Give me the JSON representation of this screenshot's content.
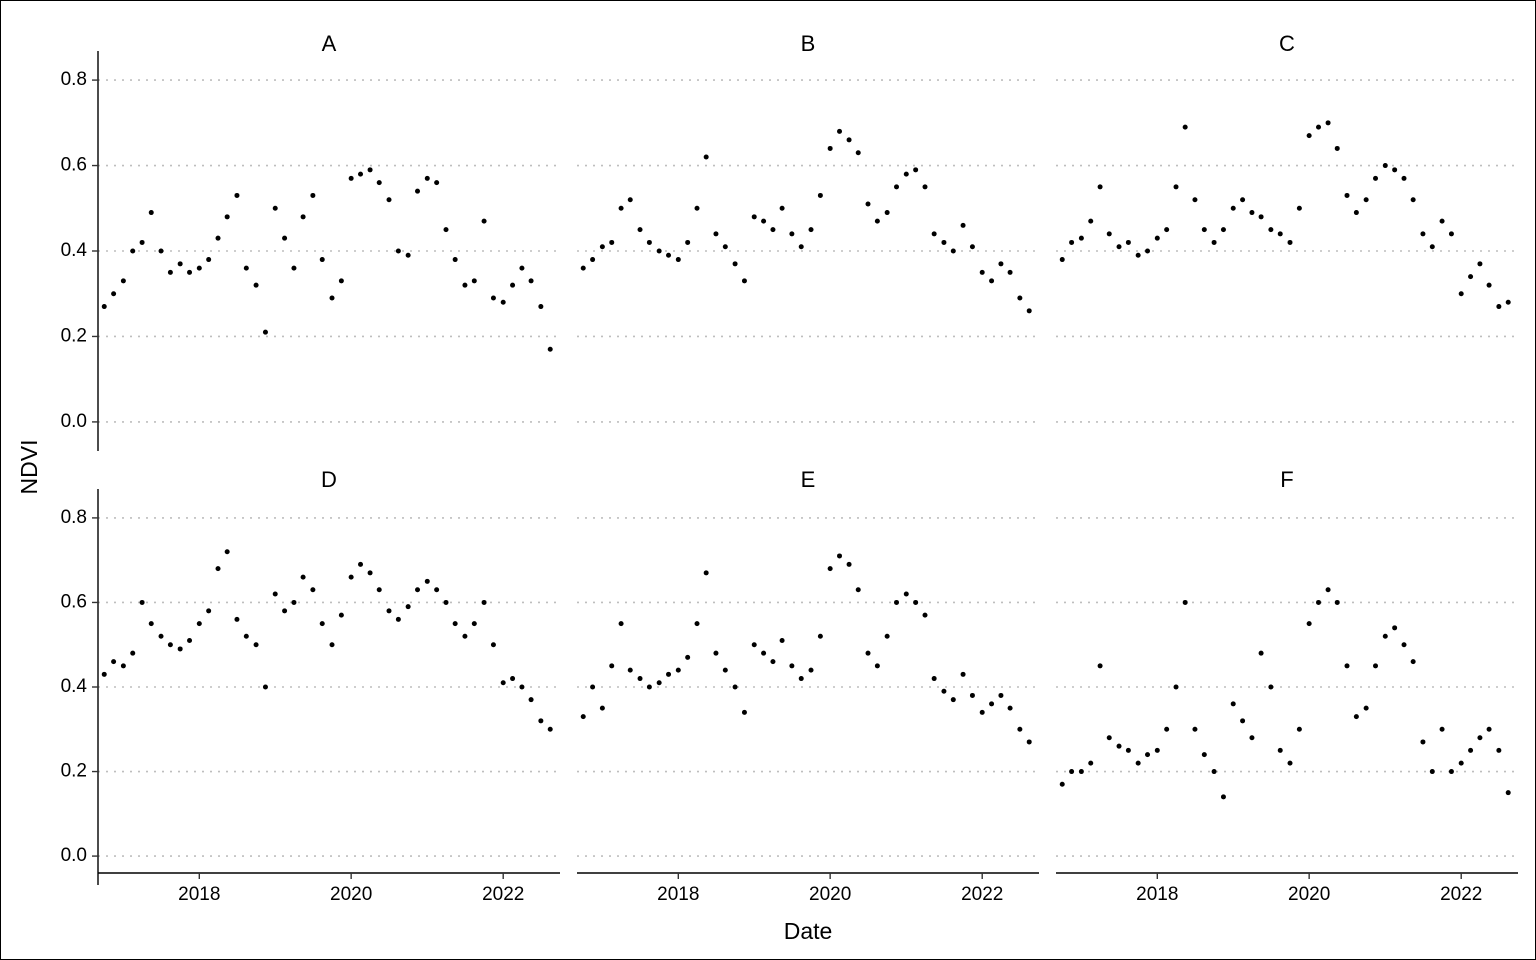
{
  "chart_data": {
    "type": "scatter",
    "layout": "facet-grid-2x3",
    "xlabel": "Date",
    "ylabel": "NDVI",
    "xlim": [
      "2016-09-01",
      "2022-10-01"
    ],
    "x_ticks": [
      "2018",
      "2020",
      "2022"
    ],
    "ylim": [
      -0.04,
      0.84
    ],
    "y_ticks": [
      "0.0",
      "0.2",
      "0.4",
      "0.6",
      "0.8"
    ],
    "grid": "horizontal dotted",
    "point_color": "#000000",
    "grid_color": "#bebebe",
    "panels": [
      {
        "label": "A",
        "x": [
          "2016-10-01",
          "2016-11-15",
          "2017-01-01",
          "2017-02-15",
          "2017-04-01",
          "2017-05-15",
          "2017-07-01",
          "2017-08-15",
          "2017-10-01",
          "2017-11-15",
          "2018-01-01",
          "2018-02-15",
          "2018-04-01",
          "2018-05-15",
          "2018-07-01",
          "2018-08-15",
          "2018-10-01",
          "2018-11-15",
          "2019-01-01",
          "2019-02-15",
          "2019-04-01",
          "2019-05-15",
          "2019-07-01",
          "2019-08-15",
          "2019-10-01",
          "2019-11-15",
          "2020-01-01",
          "2020-02-15",
          "2020-04-01",
          "2020-05-15",
          "2020-07-01",
          "2020-08-15",
          "2020-10-01",
          "2020-11-15",
          "2021-01-01",
          "2021-02-15",
          "2021-04-01",
          "2021-05-15",
          "2021-07-01",
          "2021-08-15",
          "2021-10-01",
          "2021-11-15",
          "2022-01-01",
          "2022-02-15",
          "2022-04-01",
          "2022-05-15",
          "2022-07-01",
          "2022-08-15"
        ],
        "values": [
          0.27,
          0.3,
          0.33,
          0.4,
          0.42,
          0.49,
          0.4,
          0.35,
          0.37,
          0.35,
          0.36,
          0.38,
          0.43,
          0.48,
          0.53,
          0.36,
          0.32,
          0.21,
          0.5,
          0.43,
          0.36,
          0.48,
          0.53,
          0.38,
          0.29,
          0.33,
          0.57,
          0.58,
          0.59,
          0.56,
          0.52,
          0.4,
          0.39,
          0.54,
          0.57,
          0.56,
          0.45,
          0.38,
          0.32,
          0.33,
          0.47,
          0.29,
          0.28,
          0.32,
          0.36,
          0.33,
          0.27,
          0.17
        ]
      },
      {
        "label": "B",
        "x": [
          "2016-10-01",
          "2016-11-15",
          "2017-01-01",
          "2017-02-15",
          "2017-04-01",
          "2017-05-15",
          "2017-07-01",
          "2017-08-15",
          "2017-10-01",
          "2017-11-15",
          "2018-01-01",
          "2018-02-15",
          "2018-04-01",
          "2018-05-15",
          "2018-07-01",
          "2018-08-15",
          "2018-10-01",
          "2018-11-15",
          "2019-01-01",
          "2019-02-15",
          "2019-04-01",
          "2019-05-15",
          "2019-07-01",
          "2019-08-15",
          "2019-10-01",
          "2019-11-15",
          "2020-01-01",
          "2020-02-15",
          "2020-04-01",
          "2020-05-15",
          "2020-07-01",
          "2020-08-15",
          "2020-10-01",
          "2020-11-15",
          "2021-01-01",
          "2021-02-15",
          "2021-04-01",
          "2021-05-15",
          "2021-07-01",
          "2021-08-15",
          "2021-10-01",
          "2021-11-15",
          "2022-01-01",
          "2022-02-15",
          "2022-04-01",
          "2022-05-15",
          "2022-07-01",
          "2022-08-15"
        ],
        "values": [
          0.36,
          0.38,
          0.41,
          0.42,
          0.5,
          0.52,
          0.45,
          0.42,
          0.4,
          0.39,
          0.38,
          0.42,
          0.5,
          0.62,
          0.44,
          0.41,
          0.37,
          0.33,
          0.48,
          0.47,
          0.45,
          0.5,
          0.44,
          0.41,
          0.45,
          0.53,
          0.64,
          0.68,
          0.66,
          0.63,
          0.51,
          0.47,
          0.49,
          0.55,
          0.58,
          0.59,
          0.55,
          0.44,
          0.42,
          0.4,
          0.46,
          0.41,
          0.35,
          0.33,
          0.37,
          0.35,
          0.29,
          0.26
        ]
      },
      {
        "label": "C",
        "x": [
          "2016-10-01",
          "2016-11-15",
          "2017-01-01",
          "2017-02-15",
          "2017-04-01",
          "2017-05-15",
          "2017-07-01",
          "2017-08-15",
          "2017-10-01",
          "2017-11-15",
          "2018-01-01",
          "2018-02-15",
          "2018-04-01",
          "2018-05-15",
          "2018-07-01",
          "2018-08-15",
          "2018-10-01",
          "2018-11-15",
          "2019-01-01",
          "2019-02-15",
          "2019-04-01",
          "2019-05-15",
          "2019-07-01",
          "2019-08-15",
          "2019-10-01",
          "2019-11-15",
          "2020-01-01",
          "2020-02-15",
          "2020-04-01",
          "2020-05-15",
          "2020-07-01",
          "2020-08-15",
          "2020-10-01",
          "2020-11-15",
          "2021-01-01",
          "2021-02-15",
          "2021-04-01",
          "2021-05-15",
          "2021-07-01",
          "2021-08-15",
          "2021-10-01",
          "2021-11-15",
          "2022-01-01",
          "2022-02-15",
          "2022-04-01",
          "2022-05-15",
          "2022-07-01",
          "2022-08-15"
        ],
        "values": [
          0.38,
          0.42,
          0.43,
          0.47,
          0.55,
          0.44,
          0.41,
          0.42,
          0.39,
          0.4,
          0.43,
          0.45,
          0.55,
          0.69,
          0.52,
          0.45,
          0.42,
          0.45,
          0.5,
          0.52,
          0.49,
          0.48,
          0.45,
          0.44,
          0.42,
          0.5,
          0.67,
          0.69,
          0.7,
          0.64,
          0.53,
          0.49,
          0.52,
          0.57,
          0.6,
          0.59,
          0.57,
          0.52,
          0.44,
          0.41,
          0.47,
          0.44,
          0.3,
          0.34,
          0.37,
          0.32,
          0.27,
          0.28
        ]
      },
      {
        "label": "D",
        "x": [
          "2016-10-01",
          "2016-11-15",
          "2017-01-01",
          "2017-02-15",
          "2017-04-01",
          "2017-05-15",
          "2017-07-01",
          "2017-08-15",
          "2017-10-01",
          "2017-11-15",
          "2018-01-01",
          "2018-02-15",
          "2018-04-01",
          "2018-05-15",
          "2018-07-01",
          "2018-08-15",
          "2018-10-01",
          "2018-11-15",
          "2019-01-01",
          "2019-02-15",
          "2019-04-01",
          "2019-05-15",
          "2019-07-01",
          "2019-08-15",
          "2019-10-01",
          "2019-11-15",
          "2020-01-01",
          "2020-02-15",
          "2020-04-01",
          "2020-05-15",
          "2020-07-01",
          "2020-08-15",
          "2020-10-01",
          "2020-11-15",
          "2021-01-01",
          "2021-02-15",
          "2021-04-01",
          "2021-05-15",
          "2021-07-01",
          "2021-08-15",
          "2021-10-01",
          "2021-11-15",
          "2022-01-01",
          "2022-02-15",
          "2022-04-01",
          "2022-05-15",
          "2022-07-01",
          "2022-08-15"
        ],
        "values": [
          0.43,
          0.46,
          0.45,
          0.48,
          0.6,
          0.55,
          0.52,
          0.5,
          0.49,
          0.51,
          0.55,
          0.58,
          0.68,
          0.72,
          0.56,
          0.52,
          0.5,
          0.4,
          0.62,
          0.58,
          0.6,
          0.66,
          0.63,
          0.55,
          0.5,
          0.57,
          0.66,
          0.69,
          0.67,
          0.63,
          0.58,
          0.56,
          0.59,
          0.63,
          0.65,
          0.63,
          0.6,
          0.55,
          0.52,
          0.55,
          0.6,
          0.5,
          0.41,
          0.42,
          0.4,
          0.37,
          0.32,
          0.3
        ]
      },
      {
        "label": "E",
        "x": [
          "2016-10-01",
          "2016-11-15",
          "2017-01-01",
          "2017-02-15",
          "2017-04-01",
          "2017-05-15",
          "2017-07-01",
          "2017-08-15",
          "2017-10-01",
          "2017-11-15",
          "2018-01-01",
          "2018-02-15",
          "2018-04-01",
          "2018-05-15",
          "2018-07-01",
          "2018-08-15",
          "2018-10-01",
          "2018-11-15",
          "2019-01-01",
          "2019-02-15",
          "2019-04-01",
          "2019-05-15",
          "2019-07-01",
          "2019-08-15",
          "2019-10-01",
          "2019-11-15",
          "2020-01-01",
          "2020-02-15",
          "2020-04-01",
          "2020-05-15",
          "2020-07-01",
          "2020-08-15",
          "2020-10-01",
          "2020-11-15",
          "2021-01-01",
          "2021-02-15",
          "2021-04-01",
          "2021-05-15",
          "2021-07-01",
          "2021-08-15",
          "2021-10-01",
          "2021-11-15",
          "2022-01-01",
          "2022-02-15",
          "2022-04-01",
          "2022-05-15",
          "2022-07-01",
          "2022-08-15"
        ],
        "values": [
          0.33,
          0.4,
          0.35,
          0.45,
          0.55,
          0.44,
          0.42,
          0.4,
          0.41,
          0.43,
          0.44,
          0.47,
          0.55,
          0.67,
          0.48,
          0.44,
          0.4,
          0.34,
          0.5,
          0.48,
          0.46,
          0.51,
          0.45,
          0.42,
          0.44,
          0.52,
          0.68,
          0.71,
          0.69,
          0.63,
          0.48,
          0.45,
          0.52,
          0.6,
          0.62,
          0.6,
          0.57,
          0.42,
          0.39,
          0.37,
          0.43,
          0.38,
          0.34,
          0.36,
          0.38,
          0.35,
          0.3,
          0.27
        ]
      },
      {
        "label": "F",
        "x": [
          "2016-10-01",
          "2016-11-15",
          "2017-01-01",
          "2017-02-15",
          "2017-04-01",
          "2017-05-15",
          "2017-07-01",
          "2017-08-15",
          "2017-10-01",
          "2017-11-15",
          "2018-01-01",
          "2018-02-15",
          "2018-04-01",
          "2018-05-15",
          "2018-07-01",
          "2018-08-15",
          "2018-10-01",
          "2018-11-15",
          "2019-01-01",
          "2019-02-15",
          "2019-04-01",
          "2019-05-15",
          "2019-07-01",
          "2019-08-15",
          "2019-10-01",
          "2019-11-15",
          "2020-01-01",
          "2020-02-15",
          "2020-04-01",
          "2020-05-15",
          "2020-07-01",
          "2020-08-15",
          "2020-10-01",
          "2020-11-15",
          "2021-01-01",
          "2021-02-15",
          "2021-04-01",
          "2021-05-15",
          "2021-07-01",
          "2021-08-15",
          "2021-10-01",
          "2021-11-15",
          "2022-01-01",
          "2022-02-15",
          "2022-04-01",
          "2022-05-15",
          "2022-07-01",
          "2022-08-15"
        ],
        "values": [
          0.17,
          0.2,
          0.2,
          0.22,
          0.45,
          0.28,
          0.26,
          0.25,
          0.22,
          0.24,
          0.25,
          0.3,
          0.4,
          0.6,
          0.3,
          0.24,
          0.2,
          0.14,
          0.36,
          0.32,
          0.28,
          0.48,
          0.4,
          0.25,
          0.22,
          0.3,
          0.55,
          0.6,
          0.63,
          0.6,
          0.45,
          0.33,
          0.35,
          0.45,
          0.52,
          0.54,
          0.5,
          0.46,
          0.27,
          0.2,
          0.3,
          0.2,
          0.22,
          0.25,
          0.28,
          0.3,
          0.25,
          0.15
        ]
      }
    ]
  }
}
